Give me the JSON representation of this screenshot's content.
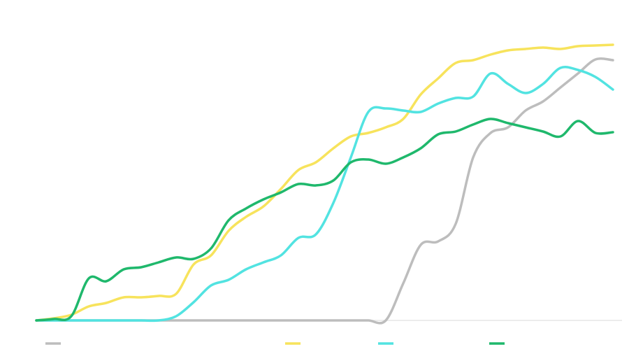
{
  "chart_data": {
    "type": "line",
    "x": [
      0,
      1,
      2,
      3,
      4,
      5,
      6,
      7,
      8,
      9,
      10,
      11,
      12,
      13,
      14,
      15,
      16,
      17,
      18,
      19,
      20,
      21,
      22,
      23,
      24,
      25,
      26,
      27,
      28,
      29,
      30,
      31,
      32,
      33
    ],
    "xlim": [
      0,
      33
    ],
    "ylim": [
      0,
      400
    ],
    "series": [
      {
        "color": "#bdbdbd",
        "values": [
          0,
          0,
          0,
          0,
          0,
          0,
          0,
          0,
          0,
          0,
          0,
          0,
          0,
          0,
          0,
          0,
          0,
          0,
          0,
          0,
          0,
          53,
          108,
          113,
          138,
          233,
          268,
          276,
          300,
          313,
          333,
          353,
          373,
          372
        ]
      },
      {
        "color": "#f7e35c",
        "values": [
          0,
          3,
          8,
          20,
          25,
          33,
          33,
          35,
          38,
          80,
          93,
          128,
          148,
          163,
          188,
          215,
          226,
          246,
          263,
          268,
          276,
          288,
          323,
          346,
          368,
          372,
          380,
          386,
          388,
          390,
          388,
          392,
          393,
          394
        ]
      },
      {
        "color": "#52e3e1",
        "values": [
          0,
          0,
          0,
          0,
          0,
          0,
          0,
          0,
          6,
          26,
          50,
          58,
          73,
          83,
          93,
          118,
          123,
          168,
          233,
          298,
          303,
          300,
          298,
          310,
          318,
          320,
          353,
          338,
          325,
          338,
          361,
          358,
          348,
          330
        ]
      },
      {
        "color": "#1fb86c",
        "values": [
          0,
          2,
          6,
          60,
          56,
          73,
          76,
          83,
          90,
          88,
          103,
          143,
          160,
          173,
          183,
          195,
          193,
          200,
          226,
          230,
          224,
          233,
          246,
          266,
          270,
          280,
          288,
          282,
          276,
          270,
          263,
          285,
          268,
          269
        ]
      }
    ]
  }
}
